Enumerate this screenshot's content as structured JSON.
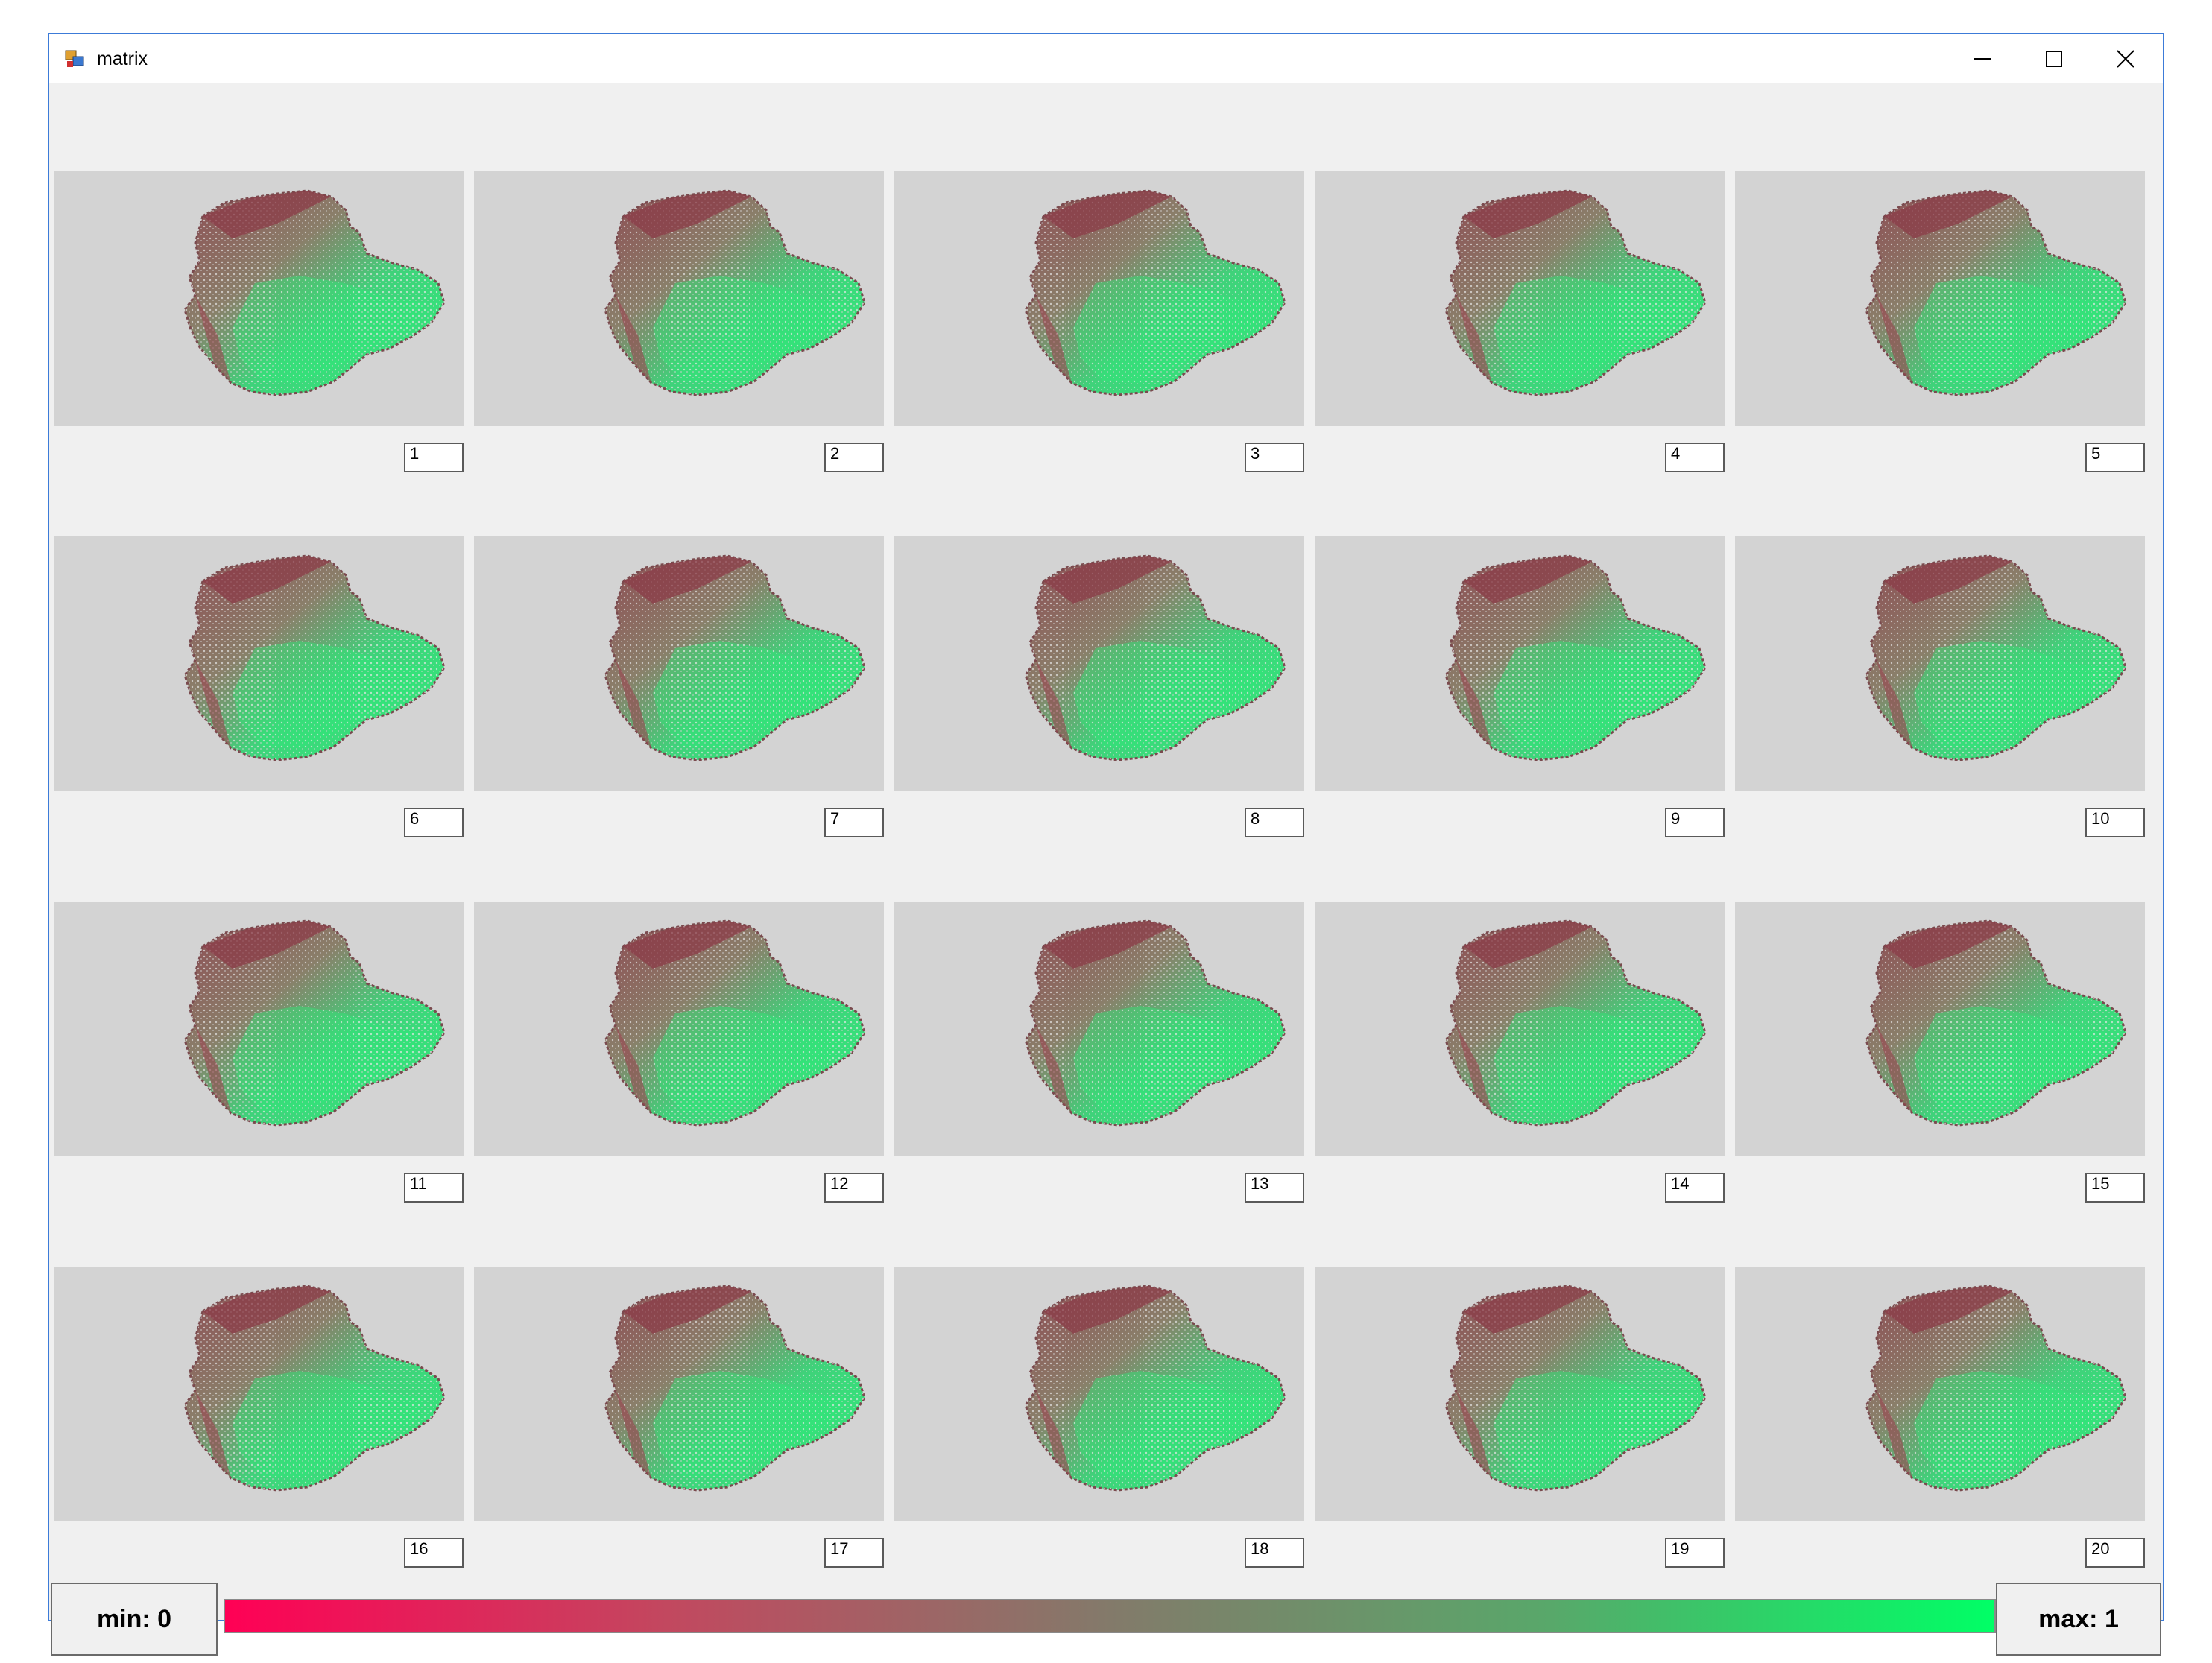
{
  "window": {
    "title": "matrix",
    "controls": {
      "minimize_icon": "minimize-icon",
      "maximize_icon": "maximize-icon",
      "close_icon": "close-icon"
    }
  },
  "grid": {
    "rows": 4,
    "columns": 5,
    "panel_background": "#d3d3d3",
    "cells": [
      {
        "label": "1"
      },
      {
        "label": "2"
      },
      {
        "label": "3"
      },
      {
        "label": "4"
      },
      {
        "label": "5"
      },
      {
        "label": "6"
      },
      {
        "label": "7"
      },
      {
        "label": "8"
      },
      {
        "label": "9"
      },
      {
        "label": "10"
      },
      {
        "label": "11"
      },
      {
        "label": "12"
      },
      {
        "label": "13"
      },
      {
        "label": "14"
      },
      {
        "label": "15"
      },
      {
        "label": "16"
      },
      {
        "label": "17"
      },
      {
        "label": "18"
      },
      {
        "label": "19"
      },
      {
        "label": "20"
      }
    ]
  },
  "legend": {
    "min_label": "min: 0",
    "max_label": "max: 1",
    "min_color": "#ff0055",
    "max_color": "#00ff66"
  }
}
